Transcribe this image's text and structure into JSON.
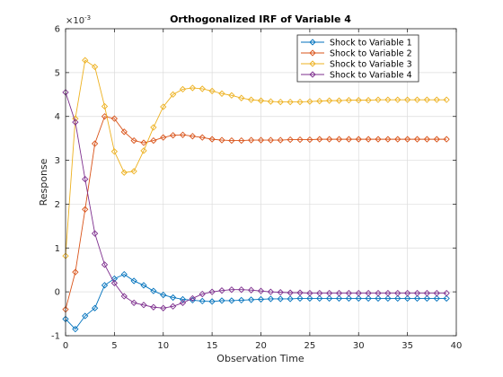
{
  "chart_data": {
    "type": "line",
    "title": "Orthogonalized IRF of Variable 4",
    "xlabel": "Observation Time",
    "ylabel": "Response",
    "y_exponent_label": "×10",
    "y_exponent_power": "-3",
    "xlim": [
      0,
      40
    ],
    "ylim": [
      -1,
      6
    ],
    "xticks": [
      "0",
      "5",
      "10",
      "15",
      "20",
      "25",
      "30",
      "35",
      "40"
    ],
    "yticks": [
      "-1",
      "0",
      "1",
      "2",
      "3",
      "4",
      "5",
      "6"
    ],
    "grid": true,
    "legend_position": "top-right",
    "x": [
      0,
      1,
      2,
      3,
      4,
      5,
      6,
      7,
      8,
      9,
      10,
      11,
      12,
      13,
      14,
      15,
      16,
      17,
      18,
      19,
      20,
      21,
      22,
      23,
      24,
      25,
      26,
      27,
      28,
      29,
      30,
      31,
      32,
      33,
      34,
      35,
      36,
      37,
      38,
      39
    ],
    "series": [
      {
        "name": "Shock to Variable 1",
        "color": "#0072BD",
        "values": [
          -0.62,
          -0.85,
          -0.55,
          -0.37,
          0.15,
          0.3,
          0.4,
          0.25,
          0.15,
          0.02,
          -0.07,
          -0.13,
          -0.17,
          -0.19,
          -0.21,
          -0.22,
          -0.2,
          -0.2,
          -0.19,
          -0.18,
          -0.17,
          -0.16,
          -0.16,
          -0.16,
          -0.15,
          -0.15,
          -0.15,
          -0.15,
          -0.15,
          -0.15,
          -0.15,
          -0.15,
          -0.15,
          -0.15,
          -0.15,
          -0.15,
          -0.15,
          -0.15,
          -0.15,
          -0.15
        ]
      },
      {
        "name": "Shock to Variable 2",
        "color": "#D95319",
        "values": [
          -0.4,
          0.45,
          1.88,
          3.38,
          4.0,
          3.95,
          3.65,
          3.45,
          3.4,
          3.45,
          3.52,
          3.57,
          3.58,
          3.55,
          3.52,
          3.48,
          3.46,
          3.45,
          3.45,
          3.46,
          3.46,
          3.46,
          3.46,
          3.47,
          3.47,
          3.47,
          3.48,
          3.48,
          3.48,
          3.48,
          3.48,
          3.48,
          3.48,
          3.48,
          3.48,
          3.48,
          3.48,
          3.48,
          3.48,
          3.48
        ]
      },
      {
        "name": "Shock to Variable 3",
        "color": "#EDB120",
        "values": [
          0.82,
          3.95,
          5.28,
          5.13,
          4.23,
          3.2,
          2.72,
          2.75,
          3.22,
          3.75,
          4.22,
          4.5,
          4.62,
          4.65,
          4.63,
          4.58,
          4.52,
          4.48,
          4.42,
          4.38,
          4.36,
          4.34,
          4.33,
          4.33,
          4.33,
          4.34,
          4.35,
          4.36,
          4.36,
          4.37,
          4.37,
          4.37,
          4.38,
          4.38,
          4.38,
          4.38,
          4.38,
          4.38,
          4.38,
          4.38
        ]
      },
      {
        "name": "Shock to Variable 4",
        "color": "#7E2F8E",
        "values": [
          4.55,
          3.87,
          2.57,
          1.33,
          0.62,
          0.2,
          -0.1,
          -0.25,
          -0.3,
          -0.35,
          -0.37,
          -0.33,
          -0.25,
          -0.15,
          -0.05,
          0.0,
          0.03,
          0.05,
          0.05,
          0.04,
          0.02,
          0.0,
          -0.01,
          -0.02,
          -0.02,
          -0.03,
          -0.03,
          -0.03,
          -0.03,
          -0.03,
          -0.03,
          -0.03,
          -0.03,
          -0.03,
          -0.03,
          -0.03,
          -0.03,
          -0.03,
          -0.03,
          -0.03
        ]
      }
    ]
  }
}
